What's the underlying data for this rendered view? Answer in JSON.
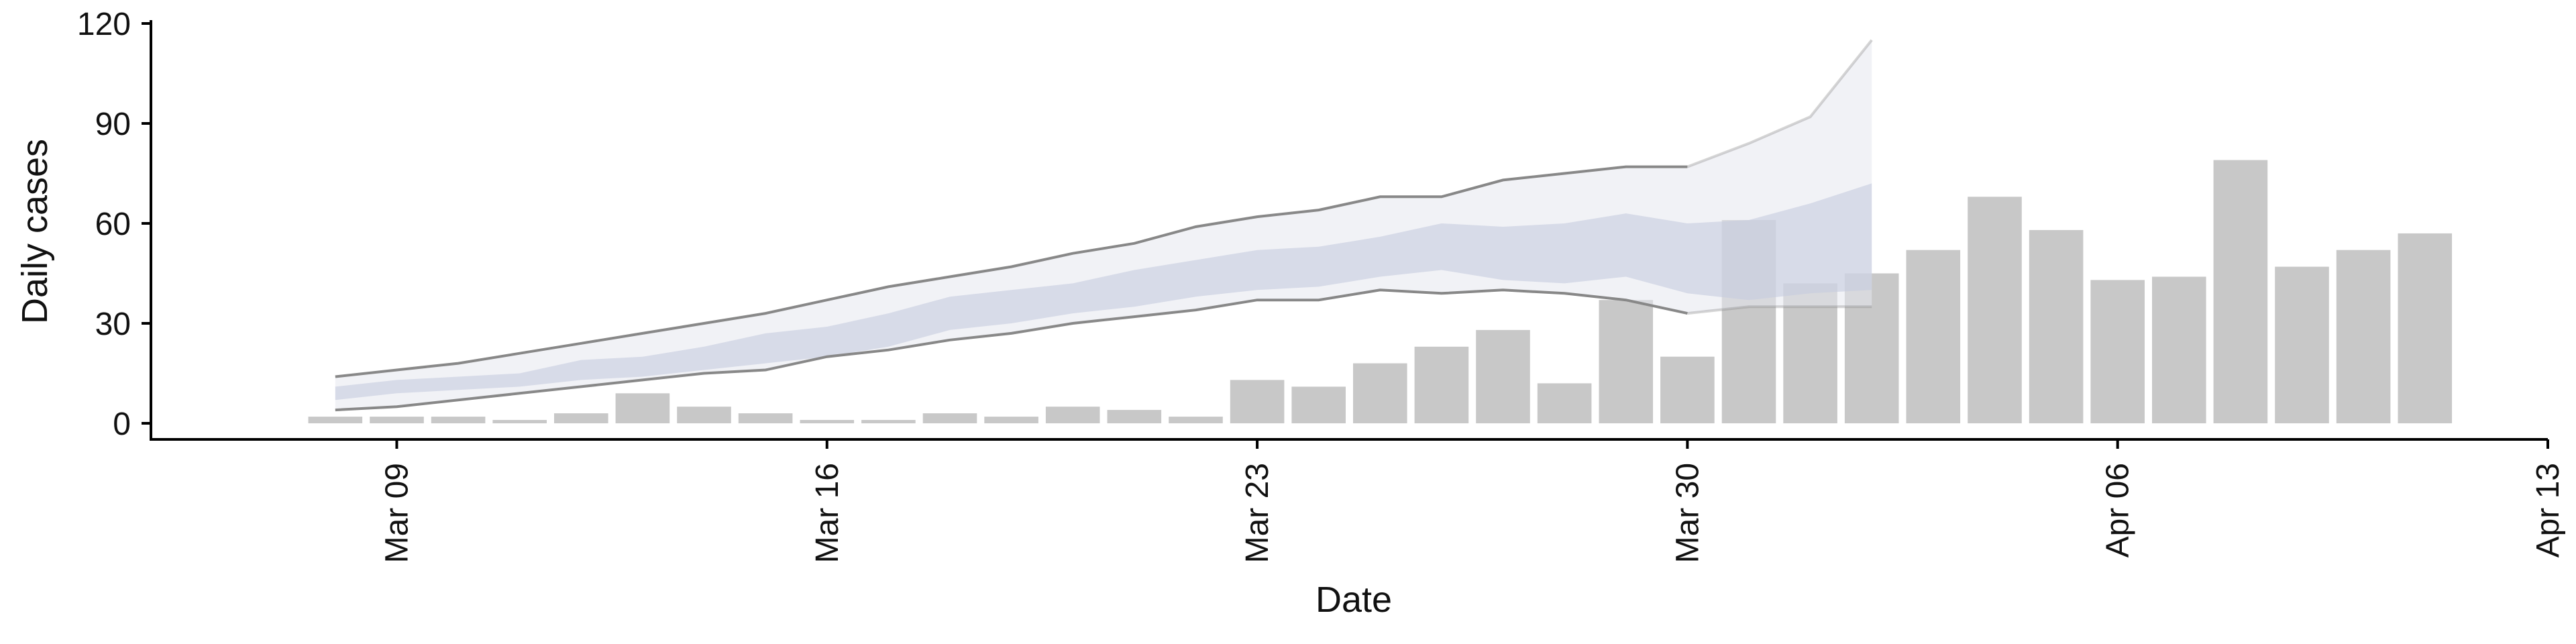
{
  "chart_data": {
    "type": "bar",
    "title": "",
    "xlabel": "Date",
    "ylabel": "Daily cases",
    "ylim": [
      0,
      120
    ],
    "y_ticks": [
      0,
      30,
      60,
      90,
      120
    ],
    "x_ticks": [
      {
        "date": "2020-03-09",
        "label": "Mar 09"
      },
      {
        "date": "2020-03-16",
        "label": "Mar 16"
      },
      {
        "date": "2020-03-23",
        "label": "Mar 23"
      },
      {
        "date": "2020-03-30",
        "label": "Mar 30"
      },
      {
        "date": "2020-04-06",
        "label": "Apr 06"
      },
      {
        "date": "2020-04-13",
        "label": "Apr 13"
      }
    ],
    "xlim": [
      "2020-03-05",
      "2020-04-13"
    ],
    "grid": false,
    "legend": "none",
    "bars": {
      "color": "#c8c8c8",
      "dates": [
        "2020-03-08",
        "2020-03-09",
        "2020-03-10",
        "2020-03-11",
        "2020-03-12",
        "2020-03-13",
        "2020-03-14",
        "2020-03-15",
        "2020-03-16",
        "2020-03-17",
        "2020-03-18",
        "2020-03-19",
        "2020-03-20",
        "2020-03-21",
        "2020-03-22",
        "2020-03-23",
        "2020-03-24",
        "2020-03-25",
        "2020-03-26",
        "2020-03-27",
        "2020-03-28",
        "2020-03-29",
        "2020-03-30",
        "2020-03-31",
        "2020-04-01",
        "2020-04-02",
        "2020-04-03",
        "2020-04-04",
        "2020-04-05",
        "2020-04-06",
        "2020-04-07",
        "2020-04-08",
        "2020-04-09",
        "2020-04-10",
        "2020-04-11"
      ],
      "values": [
        2,
        2,
        2,
        1,
        3,
        9,
        5,
        3,
        1,
        1,
        3,
        2,
        5,
        4,
        2,
        13,
        11,
        18,
        23,
        28,
        12,
        37,
        20,
        61,
        42,
        45,
        52,
        68,
        58,
        43,
        44,
        79,
        47,
        52,
        57
      ]
    },
    "forecast": {
      "dates": [
        "2020-03-08",
        "2020-03-09",
        "2020-03-10",
        "2020-03-11",
        "2020-03-12",
        "2020-03-13",
        "2020-03-14",
        "2020-03-15",
        "2020-03-16",
        "2020-03-17",
        "2020-03-18",
        "2020-03-19",
        "2020-03-20",
        "2020-03-21",
        "2020-03-22",
        "2020-03-23",
        "2020-03-24",
        "2020-03-25",
        "2020-03-26",
        "2020-03-27",
        "2020-03-28",
        "2020-03-29",
        "2020-03-30",
        "2020-03-31",
        "2020-04-01",
        "2020-04-02"
      ],
      "outer_upper": [
        14,
        16,
        18,
        21,
        24,
        27,
        30,
        33,
        37,
        41,
        44,
        47,
        51,
        54,
        59,
        62,
        64,
        68,
        68,
        73,
        75,
        77,
        77,
        84,
        92,
        115
      ],
      "outer_lower": [
        4,
        5,
        7,
        9,
        11,
        13,
        15,
        16,
        20,
        22,
        25,
        27,
        30,
        32,
        34,
        37,
        37,
        40,
        39,
        40,
        39,
        37,
        33,
        35,
        35,
        35
      ],
      "inner_upper": [
        11,
        13,
        14,
        15,
        19,
        20,
        23,
        27,
        29,
        33,
        38,
        40,
        42,
        46,
        49,
        52,
        53,
        56,
        60,
        59,
        60,
        63,
        60,
        61,
        66,
        72
      ],
      "inner_lower": [
        7,
        9,
        10,
        11,
        13,
        14,
        16,
        18,
        20,
        23,
        28,
        30,
        33,
        35,
        38,
        40,
        41,
        44,
        46,
        43,
        42,
        44,
        39,
        37,
        39,
        40
      ],
      "band_color": "#e5e7ef",
      "inner_color": "#c7cce0",
      "line_color": "#888888",
      "solid_until": "2020-03-30"
    }
  }
}
